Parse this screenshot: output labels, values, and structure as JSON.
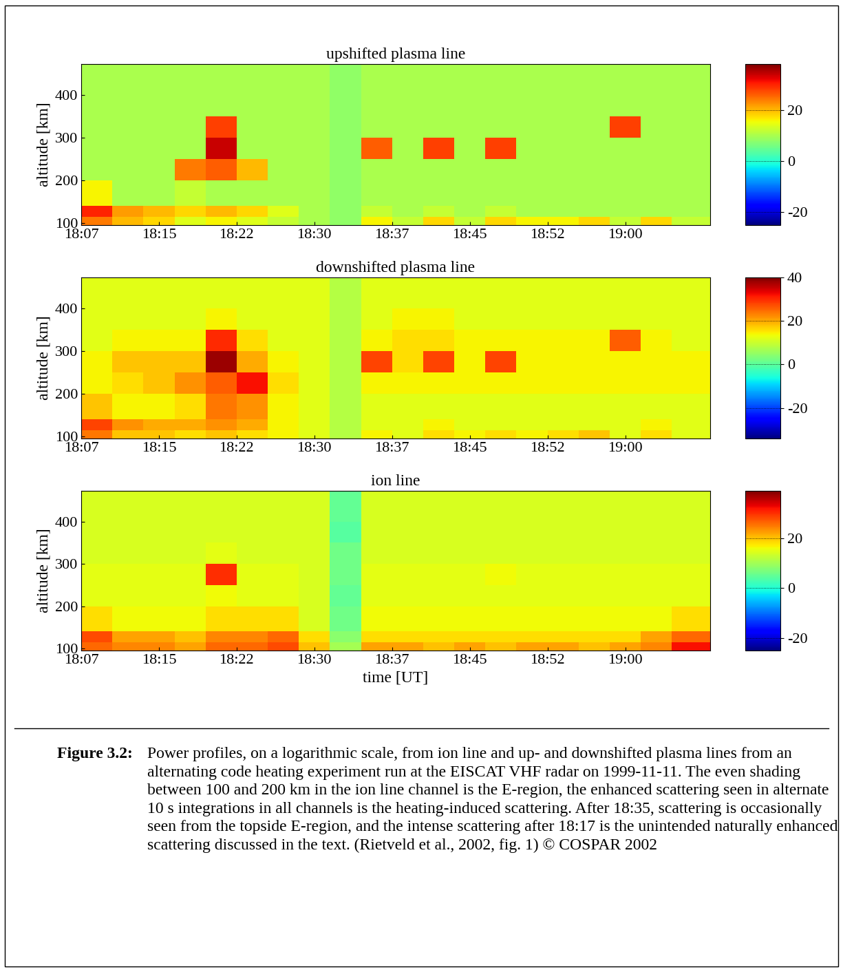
{
  "chart_data": [
    {
      "type": "heatmap",
      "title": "upshifted plasma line",
      "y_label": "altitude [km]",
      "xlim": [
        0,
        60.7
      ],
      "xticks": [
        {
          "value": 0,
          "label": "18:07"
        },
        {
          "value": 7.5,
          "label": "18:15"
        },
        {
          "value": 15,
          "label": "18:22"
        },
        {
          "value": 22.5,
          "label": "18:30"
        },
        {
          "value": 30,
          "label": "18:37"
        },
        {
          "value": 37.5,
          "label": "18:45"
        },
        {
          "value": 45,
          "label": "18:52"
        },
        {
          "value": 52.5,
          "label": "19:00"
        }
      ],
      "ylim": [
        95,
        473
      ],
      "yticks": [
        100,
        200,
        300,
        400
      ],
      "time_edges": [
        0,
        3,
        6,
        9,
        12,
        15,
        18,
        21,
        24,
        27,
        30,
        33,
        36,
        39,
        42,
        45,
        48,
        51,
        54,
        57,
        60.7
      ],
      "altitude_edges": [
        95,
        115,
        140,
        200,
        250,
        300,
        350,
        400,
        473
      ],
      "cells": [
        [
          24,
          20,
          18,
          14,
          16,
          14,
          12,
          10,
          8,
          16,
          12,
          18,
          12,
          18,
          16,
          16,
          18,
          12,
          18,
          12
        ],
        [
          30,
          22,
          20,
          18,
          20,
          18,
          14,
          10,
          8,
          12,
          10,
          12,
          10,
          12,
          10,
          10,
          10,
          10,
          10,
          10
        ],
        [
          16,
          10,
          10,
          12,
          10,
          10,
          10,
          10,
          8,
          10,
          10,
          10,
          10,
          10,
          10,
          10,
          10,
          10,
          10,
          10
        ],
        [
          10,
          10,
          10,
          24,
          26,
          20,
          10,
          10,
          8,
          10,
          10,
          10,
          10,
          10,
          10,
          10,
          10,
          10,
          10,
          10
        ],
        [
          10,
          10,
          10,
          10,
          34,
          10,
          10,
          10,
          8,
          26,
          10,
          28,
          10,
          28,
          10,
          10,
          10,
          10,
          10,
          10
        ],
        [
          10,
          10,
          10,
          10,
          28,
          10,
          10,
          10,
          8,
          10,
          10,
          10,
          10,
          10,
          10,
          10,
          10,
          28,
          10,
          10
        ],
        [
          10,
          10,
          10,
          10,
          10,
          10,
          10,
          10,
          8,
          10,
          10,
          10,
          10,
          10,
          10,
          10,
          10,
          10,
          10,
          10
        ],
        [
          10,
          10,
          10,
          10,
          10,
          10,
          10,
          10,
          8,
          10,
          10,
          10,
          10,
          10,
          10,
          10,
          10,
          10,
          10,
          10
        ]
      ],
      "colorbar_range": [
        -25,
        38
      ],
      "colorbar_ticks": [
        -20,
        0,
        20
      ]
    },
    {
      "type": "heatmap",
      "title": "downshifted plasma line",
      "y_label": "altitude [km]",
      "xlim": [
        0,
        60.7
      ],
      "xticks": [
        {
          "value": 0,
          "label": "18:07"
        },
        {
          "value": 7.5,
          "label": "18:15"
        },
        {
          "value": 15,
          "label": "18:22"
        },
        {
          "value": 22.5,
          "label": "18:30"
        },
        {
          "value": 30,
          "label": "18:37"
        },
        {
          "value": 37.5,
          "label": "18:45"
        },
        {
          "value": 45,
          "label": "18:52"
        },
        {
          "value": 52.5,
          "label": "19:00"
        }
      ],
      "ylim": [
        95,
        473
      ],
      "yticks": [
        100,
        200,
        300,
        400
      ],
      "time_edges": [
        0,
        3,
        6,
        9,
        12,
        15,
        18,
        21,
        24,
        27,
        30,
        33,
        36,
        39,
        42,
        45,
        48,
        51,
        54,
        57,
        60.7
      ],
      "altitude_edges": [
        95,
        115,
        140,
        200,
        250,
        300,
        350,
        400,
        473
      ],
      "cells": [
        [
          24,
          18,
          18,
          16,
          18,
          16,
          14,
          12,
          8,
          14,
          12,
          16,
          14,
          16,
          14,
          16,
          18,
          12,
          16,
          12
        ],
        [
          28,
          22,
          20,
          20,
          22,
          20,
          14,
          12,
          8,
          12,
          12,
          14,
          12,
          12,
          12,
          12,
          12,
          12,
          14,
          12
        ],
        [
          18,
          14,
          14,
          16,
          24,
          22,
          14,
          12,
          8,
          12,
          12,
          12,
          12,
          12,
          12,
          12,
          12,
          12,
          12,
          12
        ],
        [
          14,
          16,
          18,
          22,
          26,
          32,
          16,
          12,
          8,
          14,
          14,
          14,
          14,
          14,
          14,
          14,
          14,
          14,
          14,
          14
        ],
        [
          14,
          18,
          18,
          18,
          38,
          20,
          14,
          12,
          8,
          28,
          16,
          28,
          14,
          28,
          14,
          14,
          14,
          14,
          14,
          14
        ],
        [
          12,
          14,
          14,
          14,
          30,
          16,
          12,
          12,
          8,
          14,
          16,
          16,
          14,
          14,
          14,
          14,
          14,
          26,
          14,
          12
        ],
        [
          12,
          12,
          12,
          12,
          14,
          12,
          12,
          12,
          8,
          12,
          14,
          14,
          12,
          12,
          12,
          12,
          12,
          12,
          12,
          12
        ],
        [
          12,
          12,
          12,
          12,
          12,
          12,
          12,
          12,
          8,
          12,
          12,
          12,
          12,
          12,
          12,
          12,
          12,
          12,
          12,
          12
        ]
      ],
      "colorbar_range": [
        -34,
        40
      ],
      "colorbar_ticks": [
        -20,
        0,
        20,
        40
      ]
    },
    {
      "type": "heatmap",
      "title": "ion line",
      "x_label": "time [UT]",
      "y_label": "altitude [km]",
      "xlim": [
        0,
        60.7
      ],
      "xticks": [
        {
          "value": 0,
          "label": "18:07"
        },
        {
          "value": 7.5,
          "label": "18:15"
        },
        {
          "value": 15,
          "label": "18:22"
        },
        {
          "value": 22.5,
          "label": "18:30"
        },
        {
          "value": 30,
          "label": "18:37"
        },
        {
          "value": 37.5,
          "label": "18:45"
        },
        {
          "value": 45,
          "label": "18:52"
        },
        {
          "value": 52.5,
          "label": "19:00"
        }
      ],
      "ylim": [
        95,
        473
      ],
      "yticks": [
        100,
        200,
        300,
        400
      ],
      "time_edges": [
        0,
        3,
        6,
        9,
        12,
        15,
        18,
        21,
        24,
        27,
        30,
        33,
        36,
        39,
        42,
        45,
        48,
        51,
        54,
        57,
        60.7
      ],
      "altitude_edges": [
        95,
        115,
        140,
        200,
        250,
        300,
        350,
        400,
        473
      ],
      "cells": [
        [
          26,
          24,
          24,
          22,
          26,
          26,
          28,
          20,
          10,
          22,
          22,
          20,
          22,
          20,
          22,
          22,
          20,
          22,
          24,
          32
        ],
        [
          28,
          22,
          22,
          20,
          24,
          24,
          26,
          18,
          8,
          18,
          18,
          18,
          18,
          18,
          18,
          18,
          18,
          18,
          22,
          26
        ],
        [
          18,
          16,
          16,
          16,
          18,
          18,
          18,
          14,
          6,
          16,
          16,
          16,
          16,
          16,
          16,
          16,
          16,
          16,
          16,
          18
        ],
        [
          15,
          15,
          15,
          15,
          16,
          15,
          15,
          14,
          5,
          15,
          15,
          15,
          15,
          15,
          15,
          15,
          15,
          15,
          15,
          15
        ],
        [
          15,
          15,
          15,
          15,
          30,
          15,
          15,
          14,
          6,
          15,
          15,
          15,
          15,
          16,
          15,
          15,
          15,
          15,
          15,
          15
        ],
        [
          14,
          14,
          14,
          14,
          15,
          14,
          14,
          14,
          6,
          14,
          14,
          14,
          14,
          14,
          14,
          14,
          14,
          14,
          14,
          14
        ],
        [
          14,
          14,
          14,
          14,
          14,
          14,
          14,
          14,
          4,
          14,
          14,
          14,
          14,
          14,
          14,
          14,
          14,
          14,
          14,
          14
        ],
        [
          14,
          14,
          14,
          14,
          14,
          14,
          14,
          14,
          5,
          14,
          14,
          14,
          14,
          14,
          14,
          14,
          14,
          14,
          14,
          14
        ]
      ],
      "colorbar_range": [
        -25,
        39
      ],
      "colorbar_ticks": [
        -20,
        0,
        20
      ]
    }
  ],
  "caption": {
    "label": "Figure 3.2:",
    "text": "Power profiles, on a logarithmic scale, from ion line and up- and downshifted plasma lines from an alternating code heating experiment run at the EISCAT VHF radar on 1999-11-11. The even shading between 100 and 200 km in the ion line channel is the E-region, the enhanced scattering seen in alternate 10 s integrations in all channels is the heating-induced scattering. After 18:35, scattering is occasionally seen from the topside E-region, and the intense scattering after 18:17 is the unintended naturally enhanced scattering discussed in the text. (Rietveld et al., 2002, fig. 1) © COSPAR 2002"
  }
}
